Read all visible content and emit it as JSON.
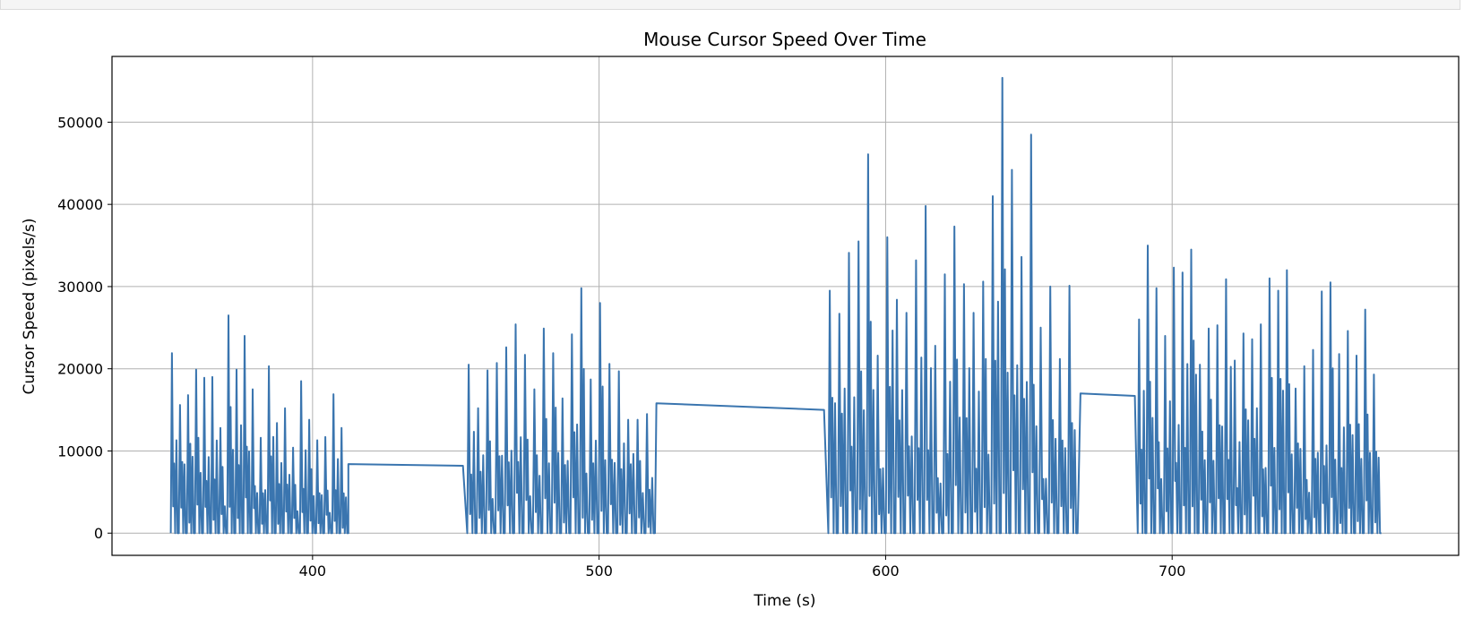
{
  "chart_data": {
    "type": "line",
    "title": "Mouse Cursor Speed Over Time",
    "xlabel": "Time (s)",
    "ylabel": "Cursor Speed (pixels/s)",
    "xlim": [
      330,
      800
    ],
    "ylim": [
      -2700,
      58000
    ],
    "xticks": [
      400,
      500,
      600,
      700
    ],
    "yticks": [
      0,
      10000,
      20000,
      30000,
      40000,
      50000
    ],
    "grid": true,
    "line_color": "#3a75af",
    "bursts": [
      {
        "start": 350.5,
        "end": 412.5,
        "peaks": [
          21900,
          15600,
          16800,
          19900,
          18900,
          19000,
          12800,
          26500,
          19900,
          24000,
          17500,
          11600,
          20300,
          13400,
          15200,
          10400,
          18500,
          13800,
          11300,
          11700,
          16900,
          12800
        ]
      },
      {
        "start": 454.0,
        "end": 519.5,
        "peaks": [
          20500,
          15200,
          19800,
          20700,
          22600,
          25400,
          21700,
          17500,
          24900,
          21900,
          16400,
          24200,
          29800,
          18700,
          28000,
          20600,
          19700,
          13800,
          13800,
          14500
        ]
      },
      {
        "start": 580.0,
        "end": 667.0,
        "peaks": [
          29500,
          26700,
          34100,
          35500,
          46100,
          21600,
          36000,
          28400,
          26800,
          33200,
          39800,
          22800,
          31500,
          37300,
          30300,
          26800,
          30600,
          41000,
          55400,
          44200,
          33600,
          48500,
          25000,
          30000,
          21200,
          30100
        ]
      },
      {
        "start": 688.0,
        "end": 773.0,
        "peaks": [
          26000,
          35000,
          29800,
          24000,
          32300,
          31700,
          34500,
          20500,
          24900,
          25300,
          30900,
          21000,
          24300,
          23600,
          25400,
          31000,
          29500,
          32000,
          17600,
          20300,
          22300,
          29400,
          30500,
          21800,
          24600,
          21600,
          27200,
          19300
        ]
      }
    ],
    "gaps": [
      {
        "x": [
          412.5,
          452.5
        ],
        "y": [
          8400,
          8200
        ]
      },
      {
        "x": [
          520.0,
          578.5
        ],
        "y": [
          15800,
          15000
        ]
      },
      {
        "x": [
          668.0,
          687.0
        ],
        "y": [
          17000,
          16700
        ]
      }
    ]
  }
}
